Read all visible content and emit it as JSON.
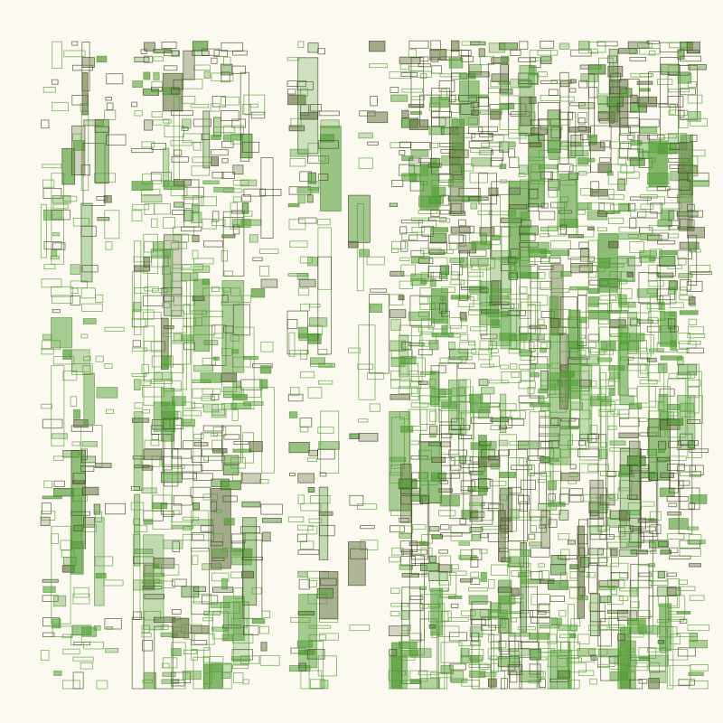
{
  "artwork": {
    "kind": "generative-rectangle-grid",
    "colors": {
      "background": "#fbf9f0",
      "green": "#4f9a32",
      "dark": "#3b4424",
      "olive": "#6d7a4a"
    }
  }
}
